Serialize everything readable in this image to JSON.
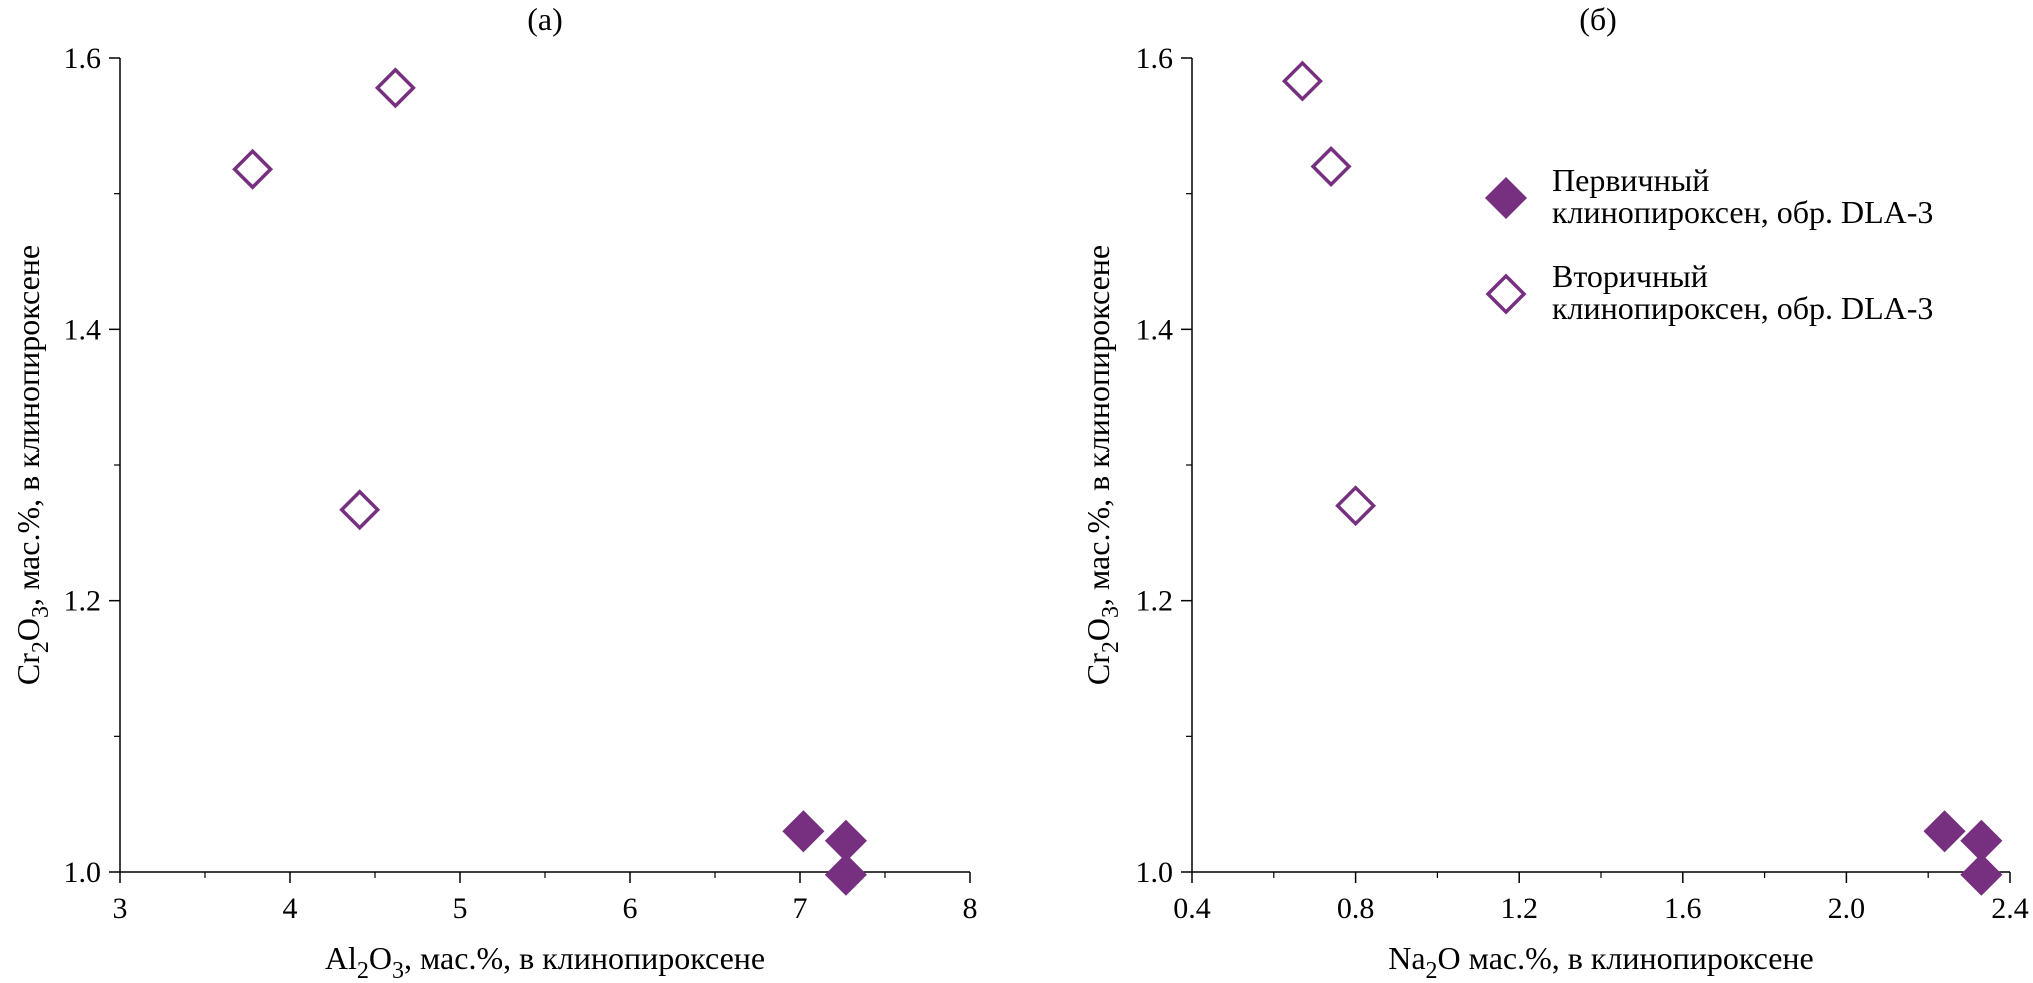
{
  "marker_color": "#76307f",
  "legend": {
    "items": [
      {
        "line1": "Первичный",
        "line2": "клинопироксен, обр. DLA-3",
        "marker": "filled-diamond"
      },
      {
        "line1": "Вторичный",
        "line2": "клинопироксен, обр. DLA-3",
        "marker": "open-diamond"
      }
    ]
  },
  "chart_data": [
    {
      "type": "scatter",
      "panel_label": "(а)",
      "xlabel": {
        "parts": [
          "Al",
          "2",
          "O",
          "3",
          ", мас.%, в клинопироксене"
        ]
      },
      "ylabel": {
        "parts": [
          "Cr",
          "2",
          "O",
          "3",
          ", мас.%, в клинопироксене"
        ]
      },
      "xlim": [
        3,
        8
      ],
      "ylim": [
        1.0,
        1.6
      ],
      "x_ticks": [
        3,
        4,
        5,
        6,
        7,
        8
      ],
      "x_tick_labels": [
        "3",
        "4",
        "5",
        "6",
        "7",
        "8"
      ],
      "y_ticks": [
        1.0,
        1.2,
        1.4,
        1.6
      ],
      "y_tick_labels": [
        "1.0",
        "1.2",
        "1.4",
        "1.6"
      ],
      "series": [
        {
          "marker": "filled-diamond",
          "points": [
            [
              7.02,
              1.03
            ],
            [
              7.27,
              1.023
            ],
            [
              7.27,
              0.998
            ]
          ]
        },
        {
          "marker": "open-diamond",
          "points": [
            [
              3.78,
              1.518
            ],
            [
              4.62,
              1.578
            ],
            [
              4.41,
              1.267
            ]
          ]
        }
      ]
    },
    {
      "type": "scatter",
      "panel_label": "(б)",
      "xlabel": {
        "parts": [
          "Na",
          "2",
          "O мас.%, в клинопироксене"
        ]
      },
      "ylabel": {
        "parts": [
          "Cr",
          "2",
          "O",
          "3",
          ", мас.%, в клинопироксене"
        ]
      },
      "xlim": [
        0.4,
        2.4
      ],
      "ylim": [
        1.0,
        1.6
      ],
      "x_ticks": [
        0.4,
        0.8,
        1.2,
        1.6,
        2.0,
        2.4
      ],
      "x_tick_labels": [
        "0.4",
        "0.8",
        "1.2",
        "1.6",
        "2.0",
        "2.4"
      ],
      "y_ticks": [
        1.0,
        1.2,
        1.4,
        1.6
      ],
      "y_tick_labels": [
        "1.0",
        "1.2",
        "1.4",
        "1.6"
      ],
      "series": [
        {
          "marker": "filled-diamond",
          "points": [
            [
              2.24,
              1.03
            ],
            [
              2.33,
              1.023
            ],
            [
              2.33,
              0.998
            ]
          ]
        },
        {
          "marker": "open-diamond",
          "points": [
            [
              0.67,
              1.583
            ],
            [
              0.74,
              1.52
            ],
            [
              0.8,
              1.27
            ]
          ]
        }
      ]
    }
  ]
}
